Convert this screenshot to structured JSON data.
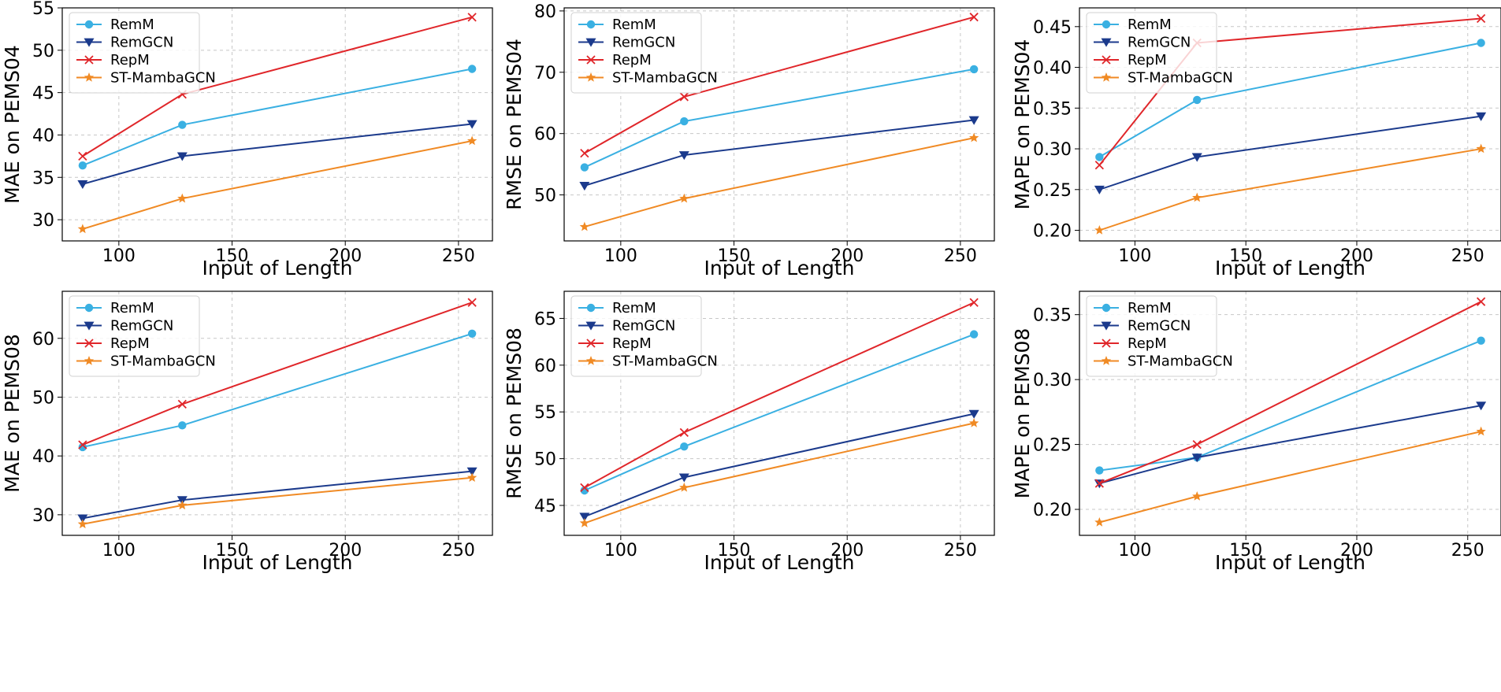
{
  "figure_title": "",
  "chart_data": [
    {
      "type": "line",
      "title": "",
      "xlabel": "Input of Length",
      "ylabel": "MAE on PEMS04",
      "x": [
        84,
        128,
        256
      ],
      "xlim": [
        75,
        265
      ],
      "ylim": [
        27.5,
        55
      ],
      "xticks": [
        100,
        150,
        200,
        250
      ],
      "yticks": [
        30,
        35,
        40,
        45,
        50,
        55
      ],
      "grid": true,
      "legend_position": "top-left",
      "series": [
        {
          "name": "RemM",
          "values": [
            36.4,
            41.2,
            47.8
          ]
        },
        {
          "name": "RemGCN",
          "values": [
            34.2,
            37.5,
            41.3
          ]
        },
        {
          "name": "RepM",
          "values": [
            37.5,
            44.8,
            53.9
          ]
        },
        {
          "name": "ST-MambaGCN",
          "values": [
            28.9,
            32.5,
            39.3
          ]
        }
      ]
    },
    {
      "type": "line",
      "title": "",
      "xlabel": "Input of Length",
      "ylabel": "RMSE on PEMS04",
      "x": [
        84,
        128,
        256
      ],
      "xlim": [
        75,
        265
      ],
      "ylim": [
        42.5,
        80.5
      ],
      "xticks": [
        100,
        150,
        200,
        250
      ],
      "yticks": [
        50,
        60,
        70,
        80
      ],
      "grid": true,
      "legend_position": "top-left",
      "series": [
        {
          "name": "RemM",
          "values": [
            54.5,
            62.0,
            70.5
          ]
        },
        {
          "name": "RemGCN",
          "values": [
            51.5,
            56.5,
            62.2
          ]
        },
        {
          "name": "RepM",
          "values": [
            56.8,
            66.0,
            79.0
          ]
        },
        {
          "name": "ST-MambaGCN",
          "values": [
            44.8,
            49.4,
            59.3
          ]
        }
      ]
    },
    {
      "type": "line",
      "title": "",
      "xlabel": "Input of Length",
      "ylabel": "MAPE on PEMS04",
      "x": [
        84,
        128,
        256
      ],
      "xlim": [
        75,
        265
      ],
      "ylim": [
        0.187,
        0.473
      ],
      "xticks": [
        100,
        150,
        200,
        250
      ],
      "yticks": [
        "0.20",
        "0.25",
        "0.30",
        "0.35",
        "0.40",
        "0.45"
      ],
      "grid": true,
      "legend_position": "top-left",
      "series": [
        {
          "name": "RemM",
          "values": [
            0.29,
            0.36,
            0.43
          ]
        },
        {
          "name": "RemGCN",
          "values": [
            0.25,
            0.29,
            0.34
          ]
        },
        {
          "name": "RepM",
          "values": [
            0.28,
            0.43,
            0.46
          ]
        },
        {
          "name": "ST-MambaGCN",
          "values": [
            0.2,
            0.24,
            0.3
          ]
        }
      ]
    },
    {
      "type": "line",
      "title": "",
      "xlabel": "Input of Length",
      "ylabel": "MAE on PEMS08",
      "x": [
        84,
        128,
        256
      ],
      "xlim": [
        75,
        265
      ],
      "ylim": [
        26.5,
        68
      ],
      "xticks": [
        100,
        150,
        200,
        250
      ],
      "yticks": [
        30,
        40,
        50,
        60
      ],
      "grid": true,
      "legend_position": "top-left",
      "series": [
        {
          "name": "RemM",
          "values": [
            41.5,
            45.2,
            60.8
          ]
        },
        {
          "name": "RemGCN",
          "values": [
            29.4,
            32.5,
            37.4
          ]
        },
        {
          "name": "RepM",
          "values": [
            41.9,
            48.8,
            66.1
          ]
        },
        {
          "name": "ST-MambaGCN",
          "values": [
            28.4,
            31.6,
            36.3
          ]
        }
      ]
    },
    {
      "type": "line",
      "title": "",
      "xlabel": "Input of Length",
      "ylabel": "RMSE on PEMS08",
      "x": [
        84,
        128,
        256
      ],
      "xlim": [
        75,
        265
      ],
      "ylim": [
        41.8,
        67.9
      ],
      "xticks": [
        100,
        150,
        200,
        250
      ],
      "yticks": [
        45,
        50,
        55,
        60,
        65
      ],
      "grid": true,
      "legend_position": "top-left",
      "series": [
        {
          "name": "RemM",
          "values": [
            46.6,
            51.3,
            63.3
          ]
        },
        {
          "name": "RemGCN",
          "values": [
            43.8,
            48.0,
            54.8
          ]
        },
        {
          "name": "RepM",
          "values": [
            46.9,
            52.8,
            66.7
          ]
        },
        {
          "name": "ST-MambaGCN",
          "values": [
            43.1,
            46.9,
            53.8
          ]
        }
      ]
    },
    {
      "type": "line",
      "title": "",
      "xlabel": "Input of Length",
      "ylabel": "MAPE on PEMS08",
      "x": [
        84,
        128,
        256
      ],
      "xlim": [
        75,
        265
      ],
      "ylim": [
        0.18,
        0.368
      ],
      "xticks": [
        100,
        150,
        200,
        250
      ],
      "yticks": [
        "0.20",
        "0.25",
        "0.30",
        "0.35"
      ],
      "grid": true,
      "legend_position": "top-left",
      "series": [
        {
          "name": "RemM",
          "values": [
            0.23,
            0.24,
            0.33
          ]
        },
        {
          "name": "RemGCN",
          "values": [
            0.22,
            0.24,
            0.28
          ]
        },
        {
          "name": "RepM",
          "values": [
            0.22,
            0.25,
            0.36
          ]
        },
        {
          "name": "ST-MambaGCN",
          "values": [
            0.19,
            0.21,
            0.26
          ]
        }
      ]
    }
  ],
  "series_styles": {
    "RemM": {
      "color": "#3ab0e2",
      "marker": "circle"
    },
    "RemGCN": {
      "color": "#1b3a8c",
      "marker": "triangle-down"
    },
    "RepM": {
      "color": "#e0262a",
      "marker": "x"
    },
    "ST-MambaGCN": {
      "color": "#f08a24",
      "marker": "star"
    }
  }
}
